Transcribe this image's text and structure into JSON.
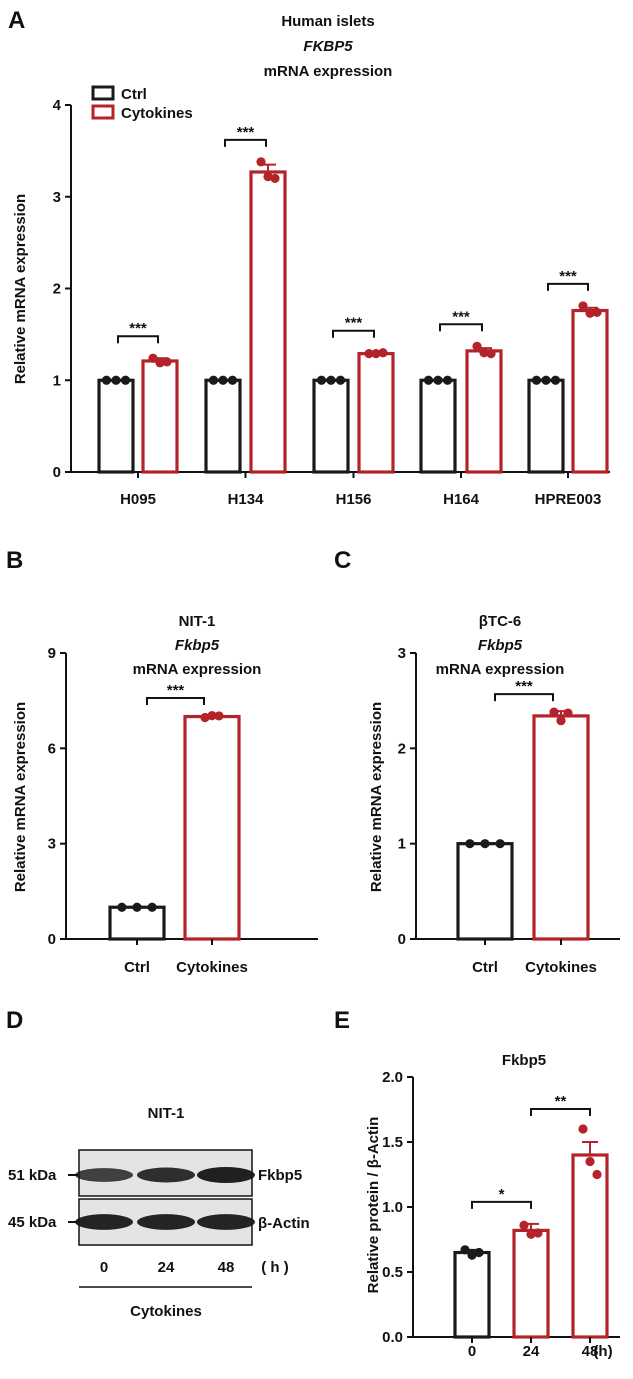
{
  "colors": {
    "ctrl": "#1a1a1a",
    "cytokines": "#b3232a",
    "axis": "#111111"
  },
  "panel_labels": {
    "a": "A",
    "b": "B",
    "c": "C",
    "d": "D",
    "e": "E"
  },
  "blot": {
    "title": "NIT-1",
    "markers": [
      "51 kDa",
      "45 kDa"
    ],
    "bands": [
      "Fkbp5",
      "β-Actin"
    ],
    "lanes": [
      "0",
      "24",
      "48"
    ],
    "unit": "( h )",
    "treatment": "Cytokines",
    "intensities": {
      "Fkbp5": [
        0.62,
        0.82,
        1.0
      ],
      "β-Actin": [
        0.95,
        0.95,
        0.95
      ]
    }
  },
  "chart_data": [
    {
      "id": "A",
      "type": "bar",
      "title": [
        "Human islets",
        "FKBP5",
        "mRNA expression"
      ],
      "ylabel": "Relative mRNA expression",
      "ylim": [
        0,
        4
      ],
      "yticks": [
        "0",
        "1",
        "2",
        "3",
        "4"
      ],
      "categories": [
        "H095",
        "H134",
        "H156",
        "H164",
        "HPRE003"
      ],
      "legend": [
        "Ctrl",
        "Cytokines"
      ],
      "legend_position": "top-left",
      "series": [
        {
          "name": "Ctrl",
          "values": [
            1,
            1,
            1,
            1,
            1
          ],
          "error": [
            0,
            0,
            0,
            0,
            0
          ],
          "points": [
            [
              1,
              1,
              1
            ],
            [
              1,
              1,
              1
            ],
            [
              1,
              1,
              1
            ],
            [
              1,
              1,
              1
            ],
            [
              1,
              1,
              1
            ]
          ]
        },
        {
          "name": "Cytokines",
          "values": [
            1.21,
            3.27,
            1.29,
            1.32,
            1.76
          ],
          "error": [
            0.03,
            0.08,
            0.01,
            0.03,
            0.03
          ],
          "points": [
            [
              1.24,
              1.19,
              1.2
            ],
            [
              3.38,
              3.22,
              3.2
            ],
            [
              1.29,
              1.29,
              1.3
            ],
            [
              1.37,
              1.3,
              1.29
            ],
            [
              1.81,
              1.73,
              1.74
            ]
          ]
        }
      ],
      "significance": [
        "***",
        "***",
        "***",
        "***",
        "***"
      ]
    },
    {
      "id": "B",
      "type": "bar",
      "title": [
        "NIT-1",
        "Fkbp5",
        "mRNA expression"
      ],
      "ylabel": "Relative mRNA expression",
      "ylim": [
        0,
        9
      ],
      "yticks": [
        "0",
        "3",
        "6",
        "9"
      ],
      "categories": [
        "Ctrl",
        "Cytokines"
      ],
      "values": [
        1,
        7.0
      ],
      "error": [
        0,
        0.05
      ],
      "points": [
        [
          1,
          1,
          1
        ],
        [
          6.97,
          7.03,
          7.02
        ]
      ],
      "significance": [
        "***"
      ]
    },
    {
      "id": "C",
      "type": "bar",
      "title": [
        "βTC-6",
        "Fkbp5",
        "mRNA expression"
      ],
      "ylabel": "Relative mRNA expression",
      "ylim": [
        0,
        3
      ],
      "yticks": [
        "0",
        "1",
        "2",
        "3"
      ],
      "categories": [
        "Ctrl",
        "Cytokines"
      ],
      "values": [
        1,
        2.34
      ],
      "error": [
        0,
        0.05
      ],
      "points": [
        [
          1,
          1,
          1
        ],
        [
          2.38,
          2.29,
          2.37
        ]
      ],
      "significance": [
        "***"
      ]
    },
    {
      "id": "E",
      "type": "bar",
      "title": [
        "Fkbp5"
      ],
      "ylabel": "Relative protein / β-Actin",
      "ylim": [
        0,
        2
      ],
      "yticks": [
        "0.0",
        "0.5",
        "1.0",
        "1.5",
        "2.0"
      ],
      "categories": [
        "0",
        "24",
        "48"
      ],
      "xunit": "(h)",
      "values": [
        0.65,
        0.82,
        1.4
      ],
      "error": [
        0.02,
        0.05,
        0.1
      ],
      "points": [
        [
          0.67,
          0.63,
          0.65
        ],
        [
          0.86,
          0.79,
          0.8
        ],
        [
          1.6,
          1.35,
          1.25
        ]
      ],
      "significance": [
        "*",
        "**"
      ]
    }
  ]
}
